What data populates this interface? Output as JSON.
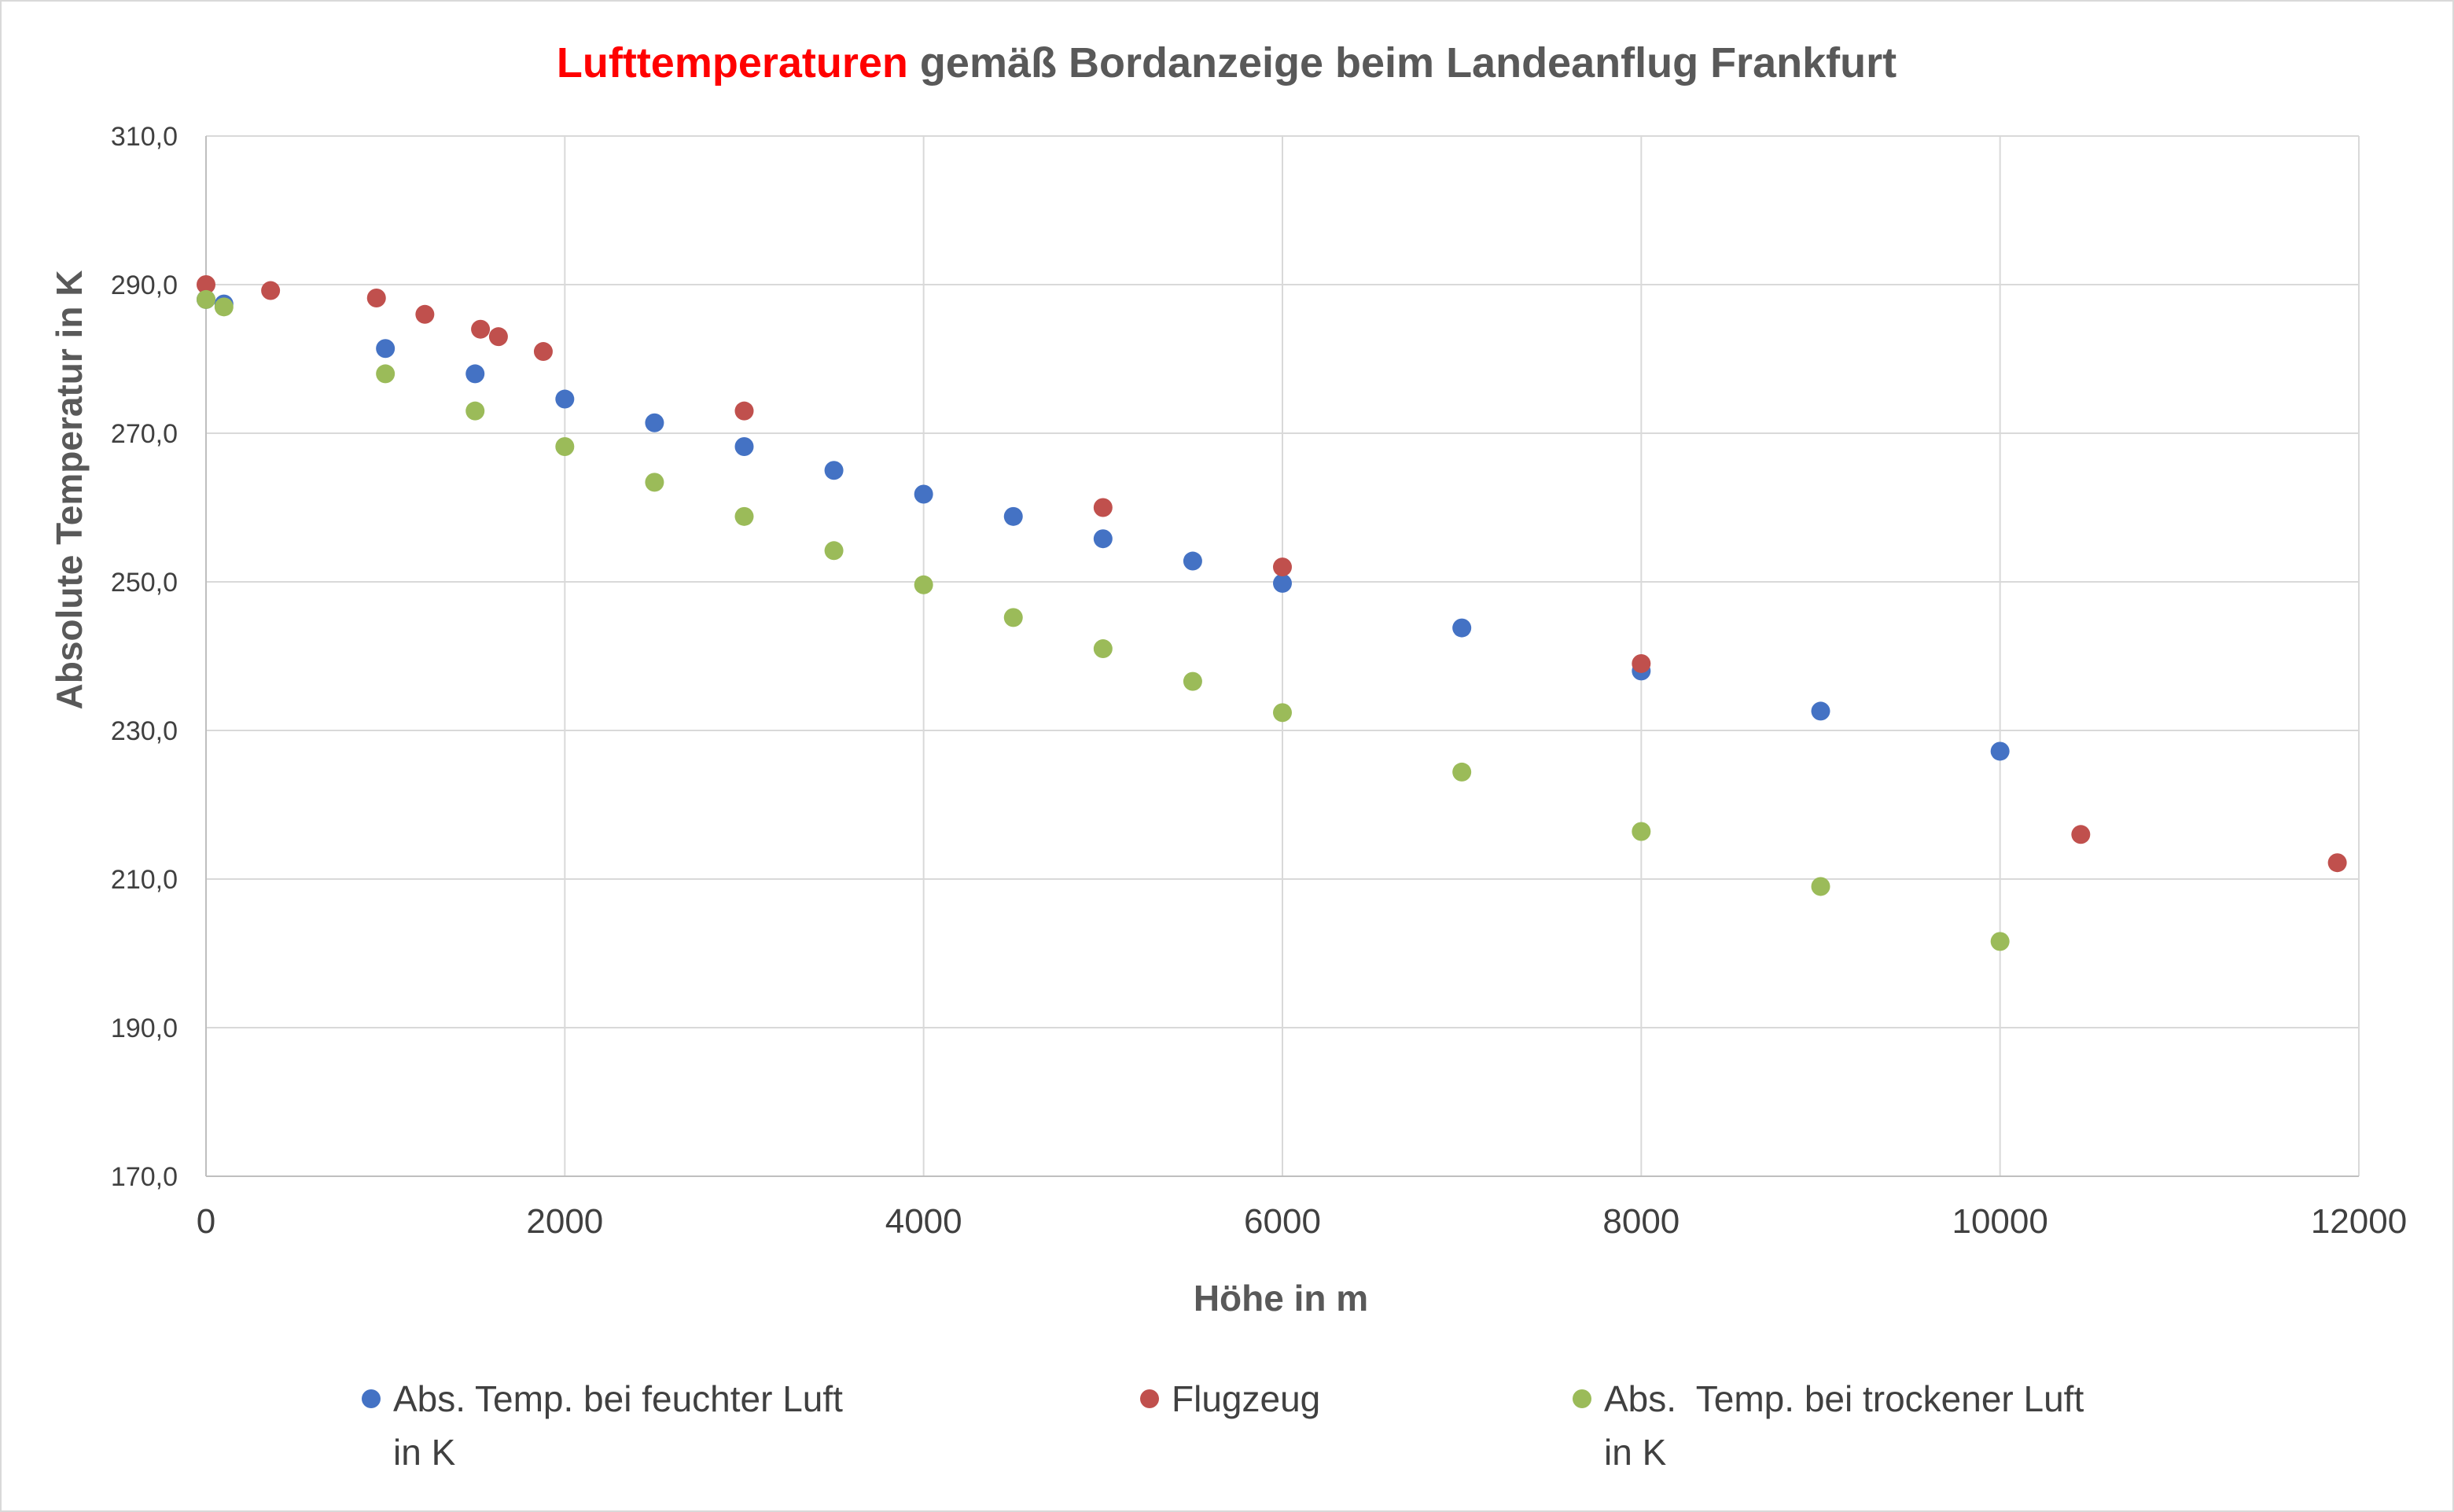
{
  "chart_data": {
    "type": "scatter",
    "title_parts": [
      {
        "text": "Lufttemperaturen",
        "color": "#ff0000"
      },
      {
        "text": " gemäß Bordanzeige beim Landeanflug Frankfurt",
        "color": "#595959"
      }
    ],
    "xlabel": "Höhe in m",
    "ylabel": "Absolute Temperatur in K",
    "xlim": [
      0,
      12000
    ],
    "ylim": [
      170,
      310
    ],
    "x_ticks": [
      "0",
      "2000",
      "4000",
      "6000",
      "8000",
      "10000",
      "12000"
    ],
    "y_ticks": [
      "170,0",
      "190,0",
      "210,0",
      "230,0",
      "250,0",
      "270,0",
      "290,0",
      "310,0"
    ],
    "grid": true,
    "legend_position": "bottom",
    "series": [
      {
        "name_lines": [
          "Abs. Temp. bei feuchter Luft",
          "in K"
        ],
        "color": "#4472c4",
        "x": [
          0,
          100,
          1000,
          1500,
          2000,
          2500,
          3000,
          3500,
          4000,
          4500,
          5000,
          5500,
          6000,
          7000,
          8000,
          9000,
          10000
        ],
        "y": [
          288.0,
          287.4,
          281.4,
          278.0,
          274.6,
          271.4,
          268.2,
          265.0,
          261.8,
          258.8,
          255.8,
          252.8,
          249.8,
          243.8,
          238.0,
          232.6,
          227.2
        ]
      },
      {
        "name_lines": [
          "Flugzeug"
        ],
        "color": "#c0504d",
        "x": [
          0,
          360,
          950,
          1220,
          1530,
          1630,
          1880,
          3000,
          5000,
          6000,
          8000,
          10450,
          11880
        ],
        "y": [
          290.0,
          289.2,
          288.2,
          286.0,
          284.0,
          283.0,
          281.0,
          273.0,
          260.0,
          252.0,
          239.0,
          216.0,
          212.2
        ]
      },
      {
        "name_lines": [
          "Abs.  Temp. bei trockener Luft",
          "in K"
        ],
        "color": "#9bbb59",
        "x": [
          0,
          100,
          1000,
          1500,
          2000,
          2500,
          3000,
          3500,
          4000,
          4500,
          5000,
          5500,
          6000,
          7000,
          8000,
          9000,
          10000
        ],
        "y": [
          288.0,
          287.0,
          278.0,
          273.0,
          268.2,
          263.4,
          258.8,
          254.2,
          249.6,
          245.2,
          241.0,
          236.6,
          232.4,
          224.4,
          216.4,
          209.0,
          201.6
        ]
      }
    ]
  }
}
